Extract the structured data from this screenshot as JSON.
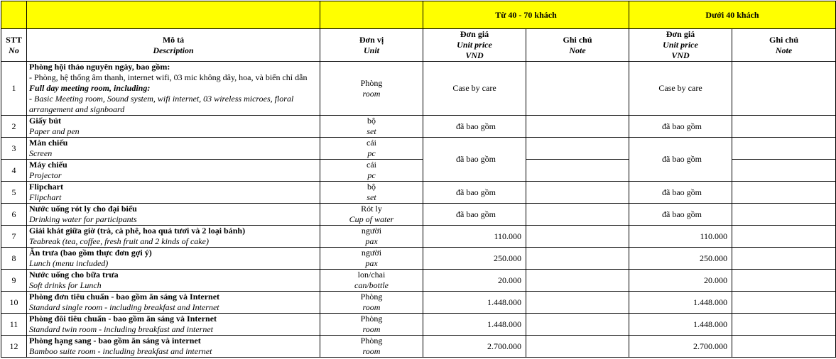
{
  "header": {
    "group1": "Từ 40 - 70 khách",
    "group2": "Dưới  40 khách",
    "stt": "STT",
    "stt_en": "No",
    "desc": "Mô tả",
    "desc_en": "Description",
    "unit": "Đơn vị",
    "unit_en": "Unit",
    "price": "Đơn giá",
    "price_en": "Unit price",
    "price_cur": "VND",
    "note": "Ghi chú",
    "note_en": "Note"
  },
  "colors": {
    "header_fill": "#ffff00",
    "border": "#000000"
  },
  "rows": [
    {
      "no": "1",
      "title": "Phòng hội thảo nguyên ngày, bao gồm:",
      "line2": "- Phòng, hệ thống âm thanh, internet wifi, 03 mic không dây, hoa, và biển chỉ dẫn",
      "title_en": "Full day meeting room, including:",
      "line4": "- Basic Meeting room, Sound system, wifi internet, 03 wireless microes, floral arrangement and signboard",
      "unit": "Phòng",
      "unit_en": "room",
      "price1": "Case by care",
      "price2": "Case by care"
    },
    {
      "no": "2",
      "title": "Giấy bút",
      "sub": "Paper and pen",
      "unit": "bộ",
      "unit_en": "set",
      "price1": "đã bao gồm",
      "price2": "đã bao gồm"
    },
    {
      "no": "3",
      "title": "Màn chiếu",
      "sub": "Screen",
      "unit": "cái",
      "unit_en": "pc",
      "price1": "đã bao gồm",
      "price2": "đã bao gồm"
    },
    {
      "no": "4",
      "title": "Máy chiếu",
      "sub": "Projector",
      "unit": "cái",
      "unit_en": "pc"
    },
    {
      "no": "5",
      "title": "Flipchart",
      "sub": "Flipchart",
      "unit": "bộ",
      "unit_en": "set",
      "price1": "đã bao gồm",
      "price2": "đã bao gồm"
    },
    {
      "no": "6",
      "title": "Nước uống rót ly cho đại biểu",
      "sub": "Drinking water for participants",
      "unit": "Rót ly",
      "unit_en": "Cup of water",
      "price1": "đã bao gồm",
      "price2": "đã bao gồm"
    },
    {
      "no": "7",
      "title": "Giải khát giữa giờ (trà, cà phê, hoa quả tươi và 2 loại bánh)",
      "sub": "Teabreak (tea, coffee, fresh fruit and 2 kinds of cake)",
      "unit": "người",
      "unit_en": "pax",
      "price1": "110.000",
      "price2": "110.000"
    },
    {
      "no": "8",
      "title": "Ăn trưa (bao gồm thực đơn gợi ý)",
      "sub": "Lunch (menu included)",
      "unit": "người",
      "unit_en": "pax",
      "price1": "250.000",
      "price2": "250.000"
    },
    {
      "no": "9",
      "title": "Nước uống cho bữa trưa",
      "sub": "Soft drinks for Lunch",
      "unit": "lon/chai",
      "unit_en": "can/bottle",
      "price1": "20.000",
      "price2": "20.000"
    },
    {
      "no": "10",
      "title": "Phòng đơn tiêu chuẩn - bao gồm ăn sáng và Internet",
      "sub": "Standard single room - including breakfast and Internet",
      "unit": "Phòng",
      "unit_en": "room",
      "price1": "1.448.000",
      "price2": "1.448.000"
    },
    {
      "no": "11",
      "title": "Phòng đôi tiêu chuẩn - bao gồm ăn sáng và Internet",
      "sub": "Standard twin room - including breakfast and internet",
      "unit": "Phòng",
      "unit_en": "room",
      "price1": "1.448.000",
      "price2": "1.448.000"
    },
    {
      "no": "12",
      "title": "Phòng hạng sang - bao gồm ăn sáng và internet",
      "sub": "Bamboo suite room - including breakfast and internet",
      "unit": "Phòng",
      "unit_en": "room",
      "price1": "2.700.000",
      "price2": "2.700.000"
    }
  ]
}
